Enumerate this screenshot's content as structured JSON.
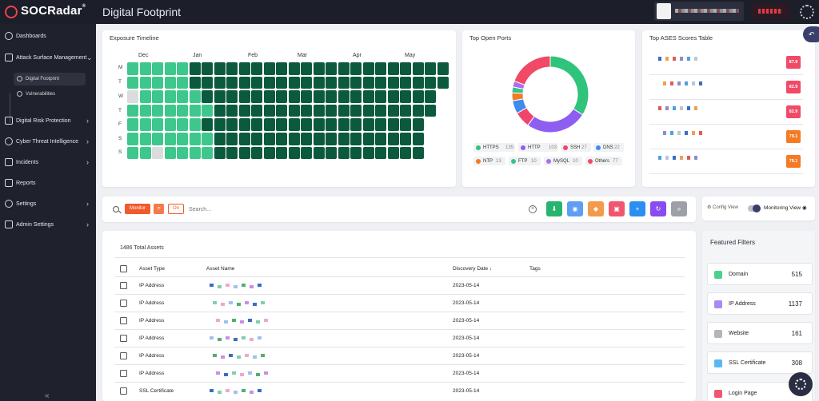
{
  "header": {
    "brand": "SOCRadar",
    "brand_mark": "®",
    "page_title": "Digital Footprint"
  },
  "sidebar": {
    "items": [
      {
        "label": "Dashboards"
      },
      {
        "label": "Attack Surface Management"
      },
      {
        "label": "Digital Risk Protection"
      },
      {
        "label": "Cyber Threat Intelligence"
      },
      {
        "label": "Incidents"
      },
      {
        "label": "Reports"
      },
      {
        "label": "Settings"
      },
      {
        "label": "Admin Settings"
      }
    ],
    "subitems": [
      {
        "label": "Digital Footprint"
      },
      {
        "label": "Vulnerabilities"
      }
    ],
    "collapse_label": "«"
  },
  "exposure": {
    "title": "Exposure Timeline",
    "months": [
      "Dec",
      "Jan",
      "Feb",
      "Mar",
      "Apr",
      "May"
    ],
    "days": [
      "M",
      "T",
      "W",
      "T",
      "F",
      "S",
      "S"
    ],
    "colors": {
      "light": "#3ec78c",
      "dark": "#0c5a3e",
      "empty": "#dcdcdc"
    }
  },
  "ports": {
    "title": "Top Open Ports",
    "legend": [
      {
        "name": "HTTPS",
        "count": "135",
        "color": "#2fc37c"
      },
      {
        "name": "HTTP",
        "count": "103",
        "color": "#8e5ef0"
      },
      {
        "name": "SSH",
        "count": "27",
        "color": "#f0456b"
      },
      {
        "name": "DNS",
        "count": "22",
        "color": "#3f8cf0"
      },
      {
        "name": "NTP",
        "count": "13",
        "color": "#f47a23"
      },
      {
        "name": "FTP",
        "count": "10",
        "color": "#38c18e"
      },
      {
        "name": "MySQL",
        "count": "10",
        "color": "#b06cf0"
      },
      {
        "name": "Others",
        "count": "77",
        "color": "#f04a66"
      }
    ]
  },
  "ases": {
    "title": "Top ASES Scores Table",
    "scores": [
      {
        "value": "87.9",
        "color": "#f04a66"
      },
      {
        "value": "82.9",
        "color": "#f04a66"
      },
      {
        "value": "82.9",
        "color": "#f04a66"
      },
      {
        "value": "79.1",
        "color": "#f47a23"
      },
      {
        "value": "79.1",
        "color": "#f47a23"
      }
    ]
  },
  "toolbar": {
    "monitor_label": "Monitor",
    "eq_label": "=",
    "on_label": "On",
    "search_placeholder": "Search...",
    "actions": [
      {
        "icon": "download-icon",
        "glyph": "⬇",
        "color": "#26b46f"
      },
      {
        "icon": "eye-icon",
        "glyph": "◉",
        "color": "#5f9ef2"
      },
      {
        "icon": "tag-icon",
        "glyph": "◆",
        "color": "#f59a4a"
      },
      {
        "icon": "comment-icon",
        "glyph": "▣",
        "color": "#f0566f"
      },
      {
        "icon": "plus-icon",
        "glyph": "+",
        "color": "#2b8ef0"
      },
      {
        "icon": "refresh-icon",
        "glyph": "↻",
        "color": "#8a4cf0"
      },
      {
        "icon": "next-icon",
        "glyph": "»",
        "color": "#9ea0a8"
      }
    ]
  },
  "view": {
    "config_label": "Config View",
    "monitoring_label": "Monitoring View"
  },
  "assets": {
    "total_label": "1486 Total Assets",
    "columns": [
      "Asset Type",
      "Asset Name",
      "Discovery Date ↓",
      "Tags"
    ],
    "rows": [
      {
        "type": "IP Address",
        "date": "2023-05-14"
      },
      {
        "type": "IP Address",
        "date": "2023-05-14"
      },
      {
        "type": "IP Address",
        "date": "2023-05-14"
      },
      {
        "type": "IP Address",
        "date": "2023-05-14"
      },
      {
        "type": "IP Address",
        "date": "2023-05-14"
      },
      {
        "type": "IP Address",
        "date": "2023-05-14"
      },
      {
        "type": "SSL Certificate",
        "date": "2023-05-14"
      }
    ]
  },
  "filters": {
    "title": "Featured Filters",
    "items": [
      {
        "name": "Domain",
        "count": "515",
        "color": "#4bd08f"
      },
      {
        "name": "IP Address",
        "count": "1137",
        "color": "#a88af2"
      },
      {
        "name": "Website",
        "count": "161",
        "color": "#b5b5b8"
      },
      {
        "name": "SSL Certificate",
        "count": "308",
        "color": "#5ab8f0"
      },
      {
        "name": "Login Page",
        "count": "",
        "color": "#f0566f"
      }
    ]
  }
}
